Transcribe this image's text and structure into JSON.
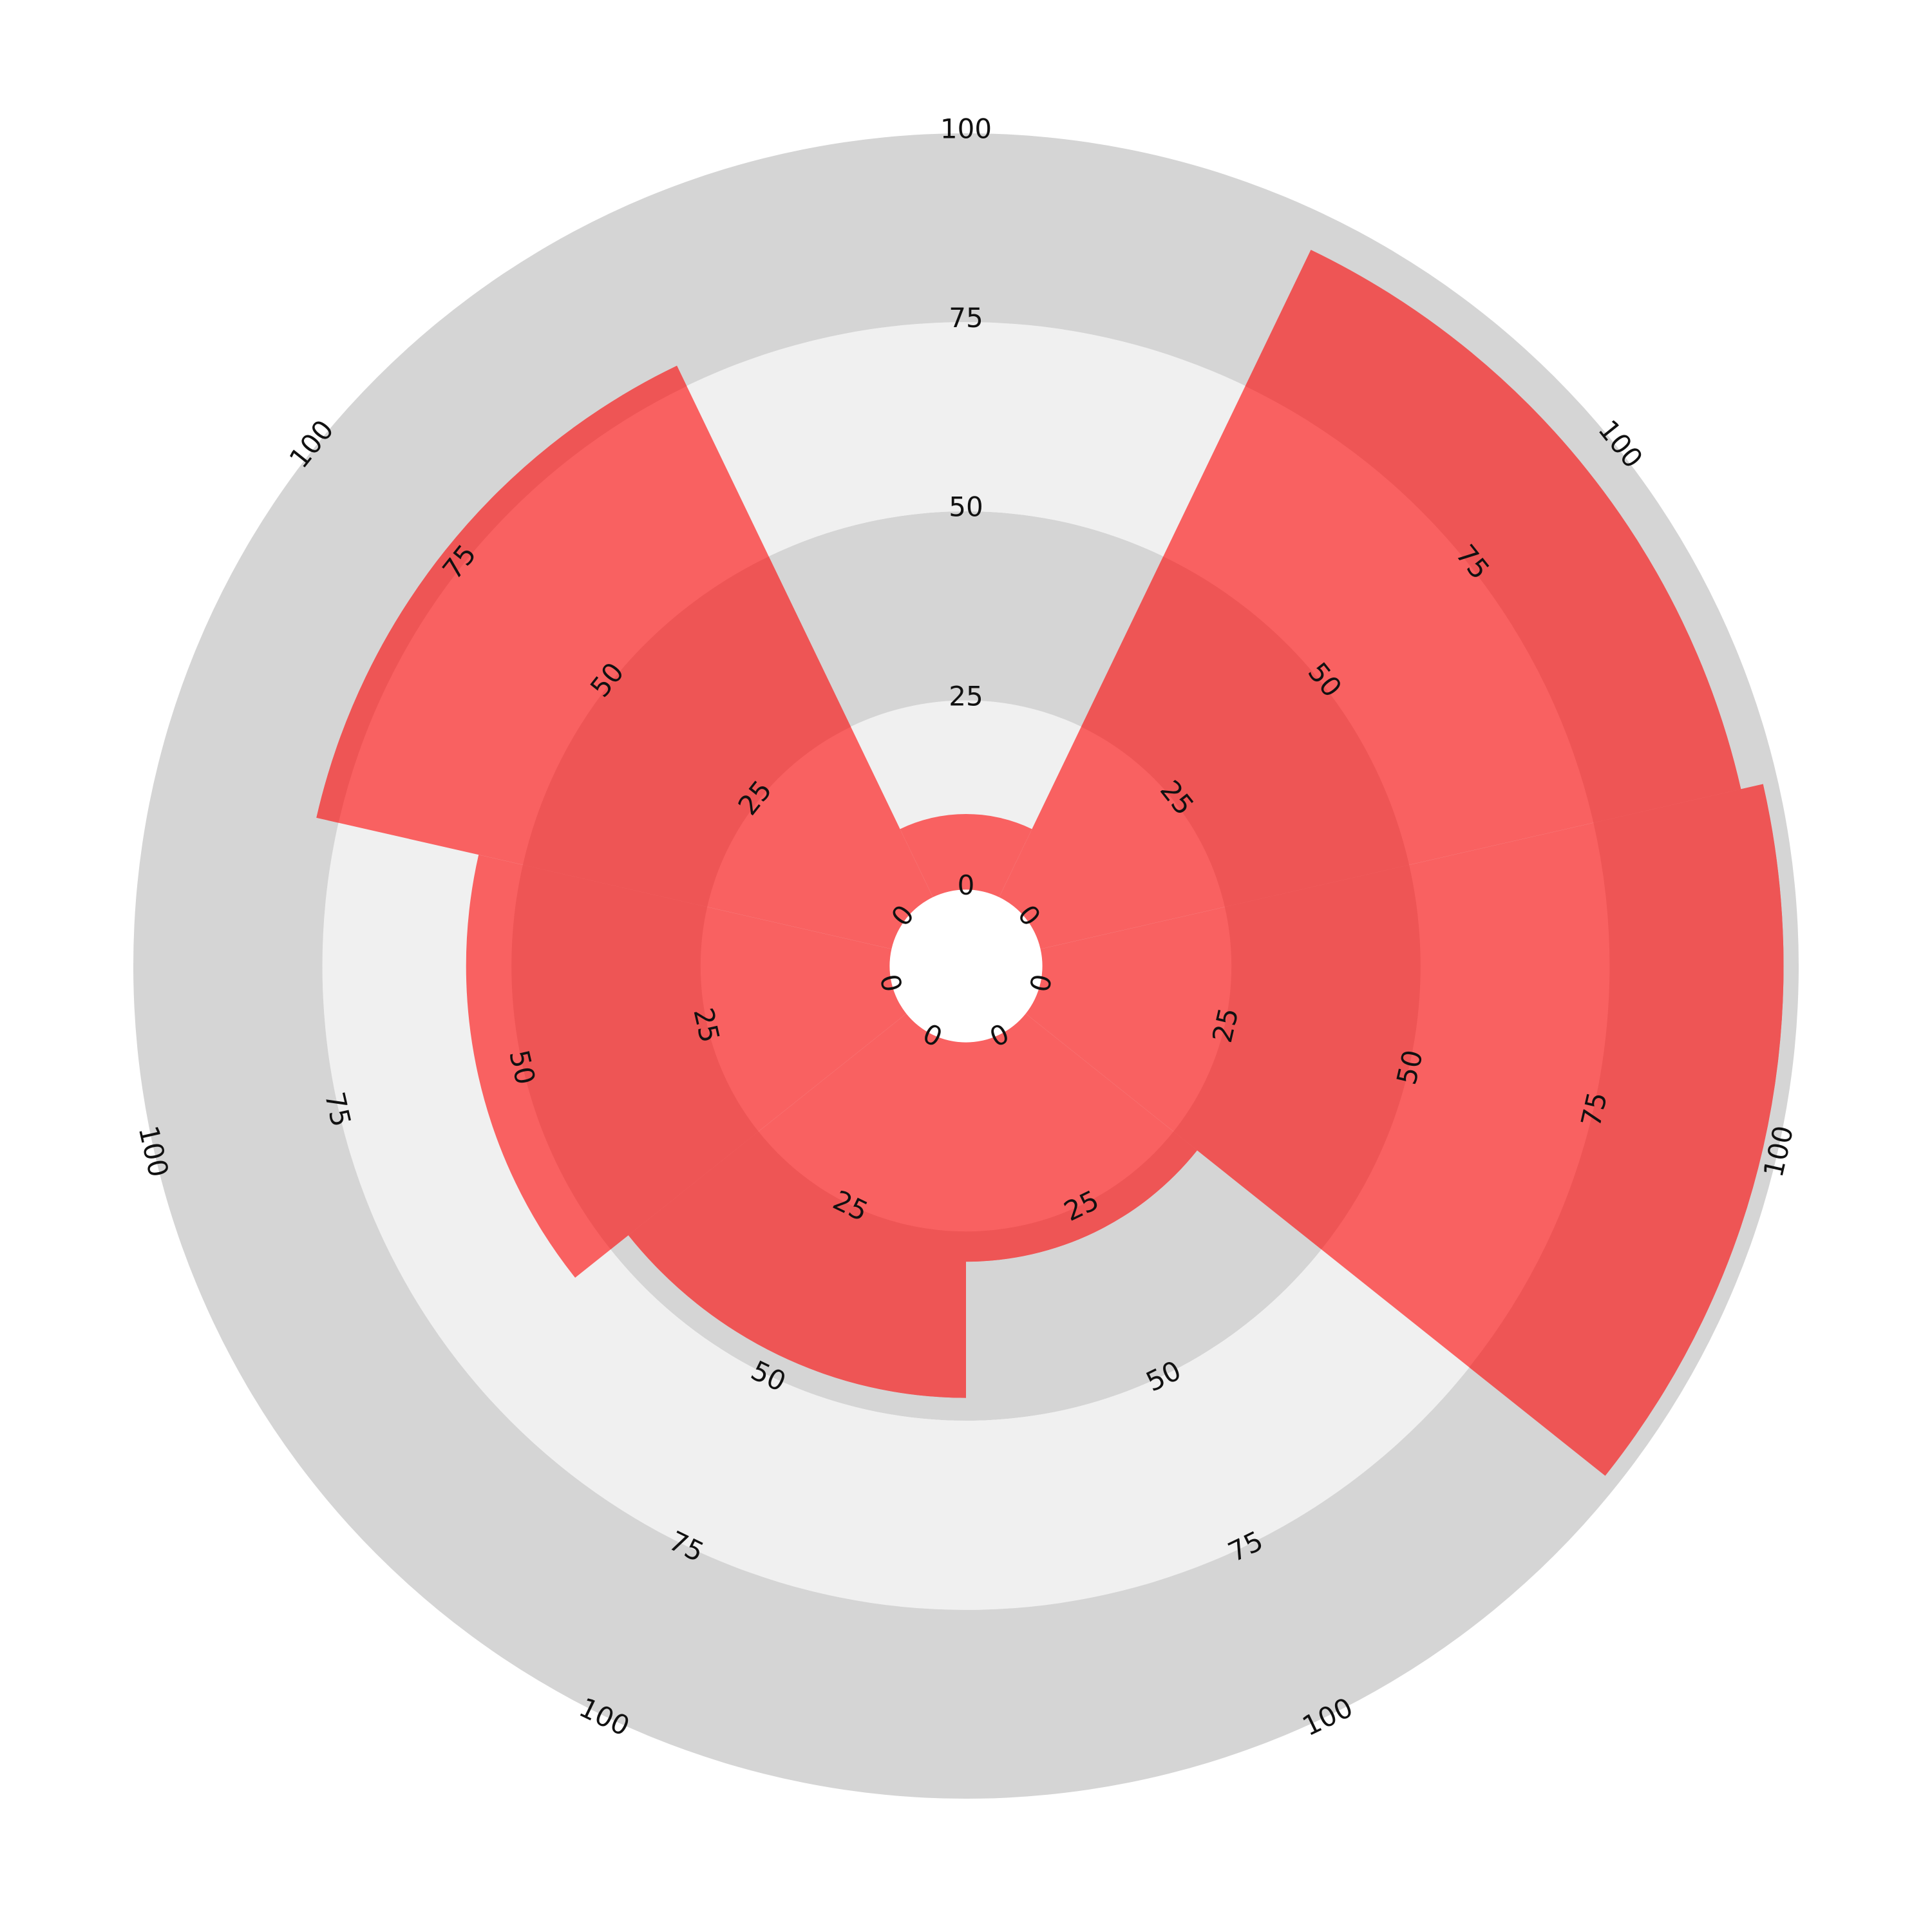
{
  "chart_data": {
    "type": "polar_bar",
    "categories": [
      null,
      null,
      null,
      null,
      null,
      null,
      null
    ],
    "values": [
      10,
      95,
      98,
      29,
      47,
      56,
      78
    ],
    "color": "#f96161",
    "rlim": [
      0,
      100
    ],
    "rticks": [
      0,
      25,
      50,
      75,
      100
    ]
  }
}
